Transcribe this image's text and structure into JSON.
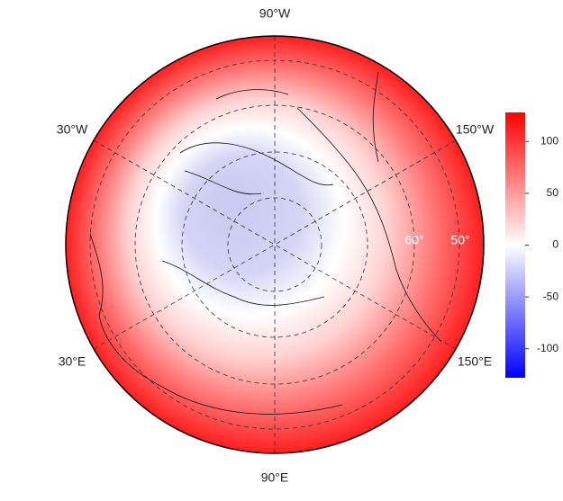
{
  "map": {
    "longitude_labels": [
      "90°W",
      "30°W",
      "150°W",
      "30°E",
      "150°E",
      "90°E"
    ],
    "latitude_labels": [
      "60°",
      "50°"
    ],
    "colorbar": {
      "lim": [
        -128,
        128
      ],
      "ticks": [
        100,
        50,
        0,
        -50,
        -100
      ]
    }
  }
}
